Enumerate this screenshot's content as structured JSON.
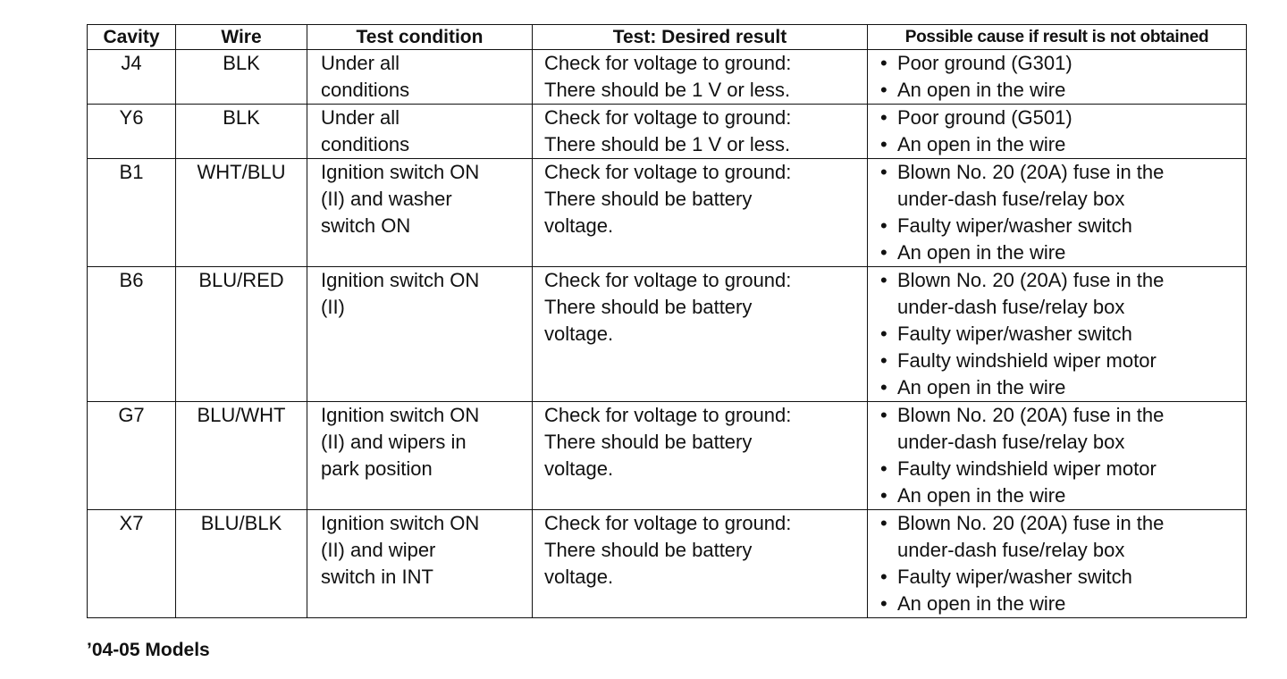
{
  "headers": [
    "Cavity",
    "Wire",
    "Test condition",
    "Test: Desired result",
    "Possible cause if result is not obtained"
  ],
  "rows": [
    {
      "cavity": "J4",
      "wire": "BLK",
      "condition": [
        "Under all",
        "conditions"
      ],
      "result": [
        "Check for voltage to ground:",
        "There should be 1 V or less."
      ],
      "causes": [
        "Poor ground (G301)",
        "An open in the wire"
      ]
    },
    {
      "cavity": "Y6",
      "wire": "BLK",
      "condition": [
        "Under all",
        "conditions"
      ],
      "result": [
        "Check for voltage to ground:",
        "There should be 1 V or less."
      ],
      "causes": [
        "Poor ground (G501)",
        "An open in the wire"
      ]
    },
    {
      "cavity": "B1",
      "wire": "WHT/BLU",
      "condition": [
        "Ignition switch ON",
        "(II) and washer",
        "switch ON"
      ],
      "result": [
        "Check for voltage to ground:",
        "There should be battery",
        "voltage."
      ],
      "causes": [
        "Blown No. 20 (20A) fuse in the|under-dash fuse/relay box",
        "Faulty wiper/washer switch",
        "An open in the wire"
      ]
    },
    {
      "cavity": "B6",
      "wire": "BLU/RED",
      "condition": [
        "Ignition switch ON",
        "(II)"
      ],
      "result": [
        "Check for voltage to ground:",
        "There should be battery",
        "voltage."
      ],
      "causes": [
        "Blown No. 20 (20A) fuse in the|under-dash fuse/relay box",
        "Faulty wiper/washer switch",
        "Faulty windshield wiper motor",
        "An open in the wire"
      ]
    },
    {
      "cavity": "G7",
      "wire": "BLU/WHT",
      "condition": [
        "Ignition switch ON",
        "(II) and wipers in",
        "park position"
      ],
      "result": [
        "Check for voltage to ground:",
        "There should be battery",
        "voltage."
      ],
      "causes": [
        "Blown No. 20 (20A) fuse in the|under-dash fuse/relay box",
        "Faulty windshield wiper motor",
        "An open in the wire"
      ]
    },
    {
      "cavity": "X7",
      "wire": "BLU/BLK",
      "condition": [
        "Ignition switch ON",
        "(II) and wiper",
        "switch in INT"
      ],
      "result": [
        "Check for voltage to ground:",
        "There should be battery",
        "voltage."
      ],
      "causes": [
        "Blown No. 20 (20A) fuse in the|under-dash fuse/relay box",
        "Faulty wiper/washer switch",
        "An open in the wire"
      ]
    }
  ],
  "footer": "’04-05 Models"
}
